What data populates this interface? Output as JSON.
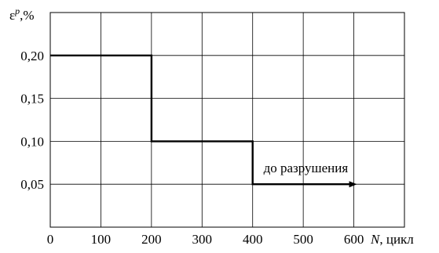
{
  "chart_data": {
    "type": "line",
    "step": true,
    "ylabel": {
      "symbol": "ε",
      "superscript": "p",
      "unit": ",%"
    },
    "xlabel": {
      "symbol": "N",
      "unit": ", цикл"
    },
    "xlim": [
      0,
      700
    ],
    "ylim": [
      0,
      0.25
    ],
    "x_ticks": [
      0,
      100,
      200,
      300,
      400,
      500,
      600
    ],
    "x_tick_labels": [
      "0",
      "100",
      "200",
      "300",
      "400",
      "500",
      "600"
    ],
    "y_ticks": [
      0.05,
      0.1,
      0.15,
      0.2
    ],
    "y_tick_labels": [
      "0,05",
      "0,10",
      "0,15",
      "0,20"
    ],
    "grid": true,
    "series": [
      {
        "points": [
          [
            0,
            0.2
          ],
          [
            200,
            0.2
          ],
          [
            200,
            0.1
          ],
          [
            400,
            0.1
          ],
          [
            400,
            0.05
          ],
          [
            600,
            0.05
          ]
        ],
        "end_arrow": true
      }
    ],
    "annotations": [
      {
        "text": "до разрушения",
        "x": 505,
        "y": 0.05
      }
    ]
  }
}
